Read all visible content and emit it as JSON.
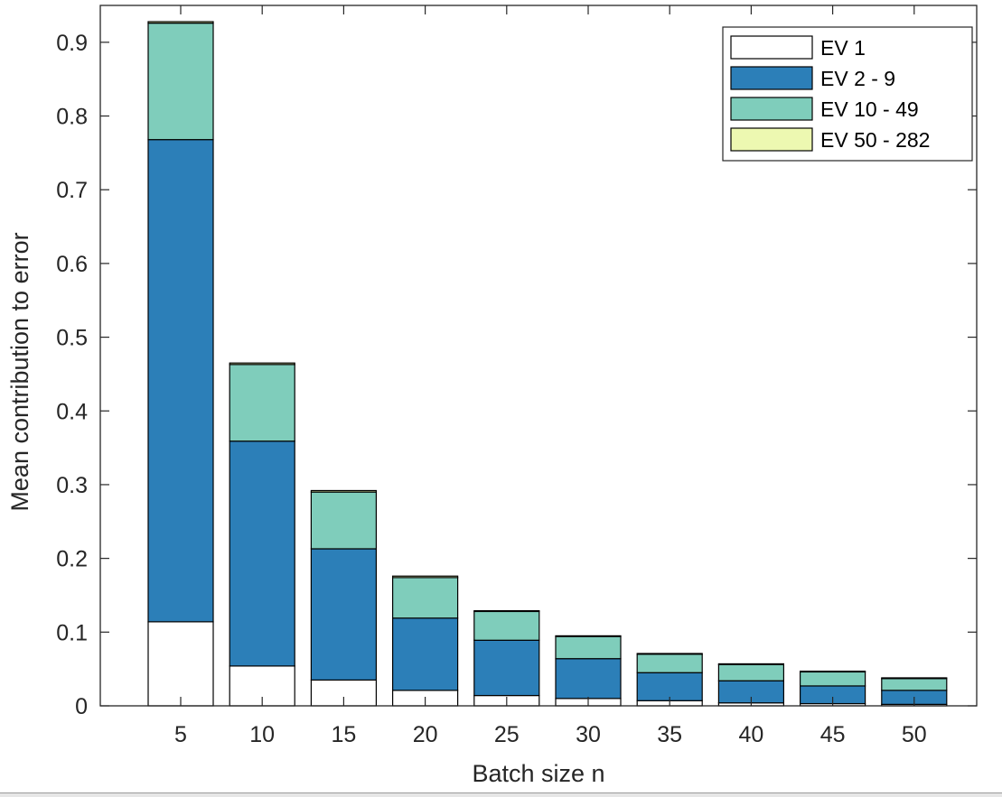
{
  "chart_data": {
    "type": "bar",
    "stacked": true,
    "title": "",
    "xlabel": "Batch size n",
    "ylabel": "Mean contribution to error",
    "ylim": [
      0,
      0.95
    ],
    "grid": false,
    "legend_position": "top-right",
    "categories": [
      "5",
      "10",
      "15",
      "20",
      "25",
      "30",
      "35",
      "40",
      "45",
      "50"
    ],
    "y_ticks": [
      {
        "value": 0,
        "label": "0"
      },
      {
        "value": 0.1,
        "label": "0.1"
      },
      {
        "value": 0.2,
        "label": "0.2"
      },
      {
        "value": 0.3,
        "label": "0.3"
      },
      {
        "value": 0.4,
        "label": "0.4"
      },
      {
        "value": 0.5,
        "label": "0.5"
      },
      {
        "value": 0.6,
        "label": "0.6"
      },
      {
        "value": 0.7,
        "label": "0.7"
      },
      {
        "value": 0.8,
        "label": "0.8"
      },
      {
        "value": 0.9,
        "label": "0.9"
      }
    ],
    "series": [
      {
        "name": "EV 1",
        "color": "#ffffff",
        "values": [
          0.114,
          0.054,
          0.035,
          0.021,
          0.014,
          0.01,
          0.007,
          0.004,
          0.003,
          0.002
        ]
      },
      {
        "name": "EV 2 - 9",
        "color": "#2c7fb8",
        "values": [
          0.654,
          0.305,
          0.178,
          0.098,
          0.075,
          0.054,
          0.038,
          0.03,
          0.024,
          0.019
        ]
      },
      {
        "name": "EV 10 - 49",
        "color": "#7fcdbb",
        "values": [
          0.158,
          0.104,
          0.077,
          0.055,
          0.039,
          0.03,
          0.025,
          0.022,
          0.019,
          0.016
        ]
      },
      {
        "name": "EV 50 - 282",
        "color": "#edf8b1",
        "values": [
          0.002,
          0.002,
          0.002,
          0.002,
          0.001,
          0.001,
          0.001,
          0.001,
          0.001,
          0.001
        ]
      }
    ]
  }
}
